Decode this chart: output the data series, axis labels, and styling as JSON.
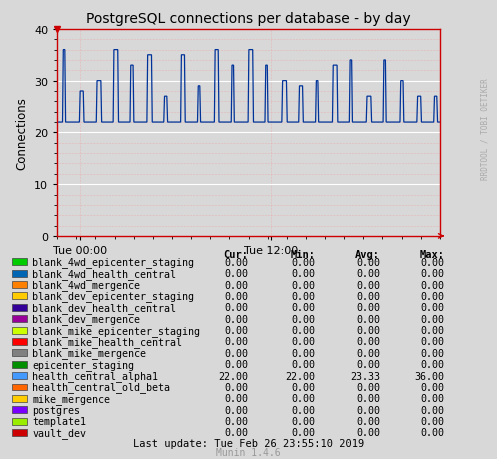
{
  "title": "PostgreSQL connections per database - by day",
  "ylabel": "Connections",
  "bg_color": "#d8d8d8",
  "plot_bg_color": "#d8d8d8",
  "line_color": "#003399",
  "axis_color": "#cc0000",
  "ylim": [
    0,
    40
  ],
  "yticks": [
    0,
    10,
    20,
    30,
    40
  ],
  "xtick_labels": [
    "Tue 00:00",
    "Tue 12:00"
  ],
  "xtick_pos": [
    0.06,
    0.56
  ],
  "watermark": "RRDTOOL / TOBI OETIKER",
  "footer": "Last update: Tue Feb 26 23:55:10 2019",
  "munin_version": "Munin 1.4.6",
  "legend_entries": [
    {
      "label": "blank_4wd_epicenter_staging",
      "color": "#00cc00"
    },
    {
      "label": "blank_4wd_health_central",
      "color": "#0066b3"
    },
    {
      "label": "blank_4wd_mergence",
      "color": "#ff8000"
    },
    {
      "label": "blank_dev_epicenter_staging",
      "color": "#ffcc00"
    },
    {
      "label": "blank_dev_health_central",
      "color": "#330099"
    },
    {
      "label": "blank_dev_mergence",
      "color": "#990099"
    },
    {
      "label": "blank_mike_epicenter_staging",
      "color": "#ccff00"
    },
    {
      "label": "blank_mike_health_central",
      "color": "#ff0000"
    },
    {
      "label": "blank_mike_mergence",
      "color": "#808080"
    },
    {
      "label": "epicenter_staging",
      "color": "#008f00"
    },
    {
      "label": "health_central_alpha1",
      "color": "#4499ff"
    },
    {
      "label": "health_central_old_beta",
      "color": "#ff6600"
    },
    {
      "label": "mike_mergence",
      "color": "#ffcc00"
    },
    {
      "label": "postgres",
      "color": "#7700ff"
    },
    {
      "label": "template1",
      "color": "#99ee00"
    },
    {
      "label": "vault_dev",
      "color": "#cc0000"
    }
  ],
  "legend_stats": [
    {
      "cur": "0.00",
      "min": "0.00",
      "avg": "0.00",
      "max": "0.00"
    },
    {
      "cur": "0.00",
      "min": "0.00",
      "avg": "0.00",
      "max": "0.00"
    },
    {
      "cur": "0.00",
      "min": "0.00",
      "avg": "0.00",
      "max": "0.00"
    },
    {
      "cur": "0.00",
      "min": "0.00",
      "avg": "0.00",
      "max": "0.00"
    },
    {
      "cur": "0.00",
      "min": "0.00",
      "avg": "0.00",
      "max": "0.00"
    },
    {
      "cur": "0.00",
      "min": "0.00",
      "avg": "0.00",
      "max": "0.00"
    },
    {
      "cur": "0.00",
      "min": "0.00",
      "avg": "0.00",
      "max": "0.00"
    },
    {
      "cur": "0.00",
      "min": "0.00",
      "avg": "0.00",
      "max": "0.00"
    },
    {
      "cur": "0.00",
      "min": "0.00",
      "avg": "0.00",
      "max": "0.00"
    },
    {
      "cur": "0.00",
      "min": "0.00",
      "avg": "0.00",
      "max": "0.00"
    },
    {
      "cur": "22.00",
      "min": "22.00",
      "avg": "23.33",
      "max": "36.00"
    },
    {
      "cur": "0.00",
      "min": "0.00",
      "avg": "0.00",
      "max": "0.00"
    },
    {
      "cur": "0.00",
      "min": "0.00",
      "avg": "0.00",
      "max": "0.00"
    },
    {
      "cur": "0.00",
      "min": "0.00",
      "avg": "0.00",
      "max": "0.00"
    },
    {
      "cur": "0.00",
      "min": "0.00",
      "avg": "0.00",
      "max": "0.00"
    },
    {
      "cur": "0.00",
      "min": "0.00",
      "avg": "0.00",
      "max": "0.00"
    }
  ]
}
